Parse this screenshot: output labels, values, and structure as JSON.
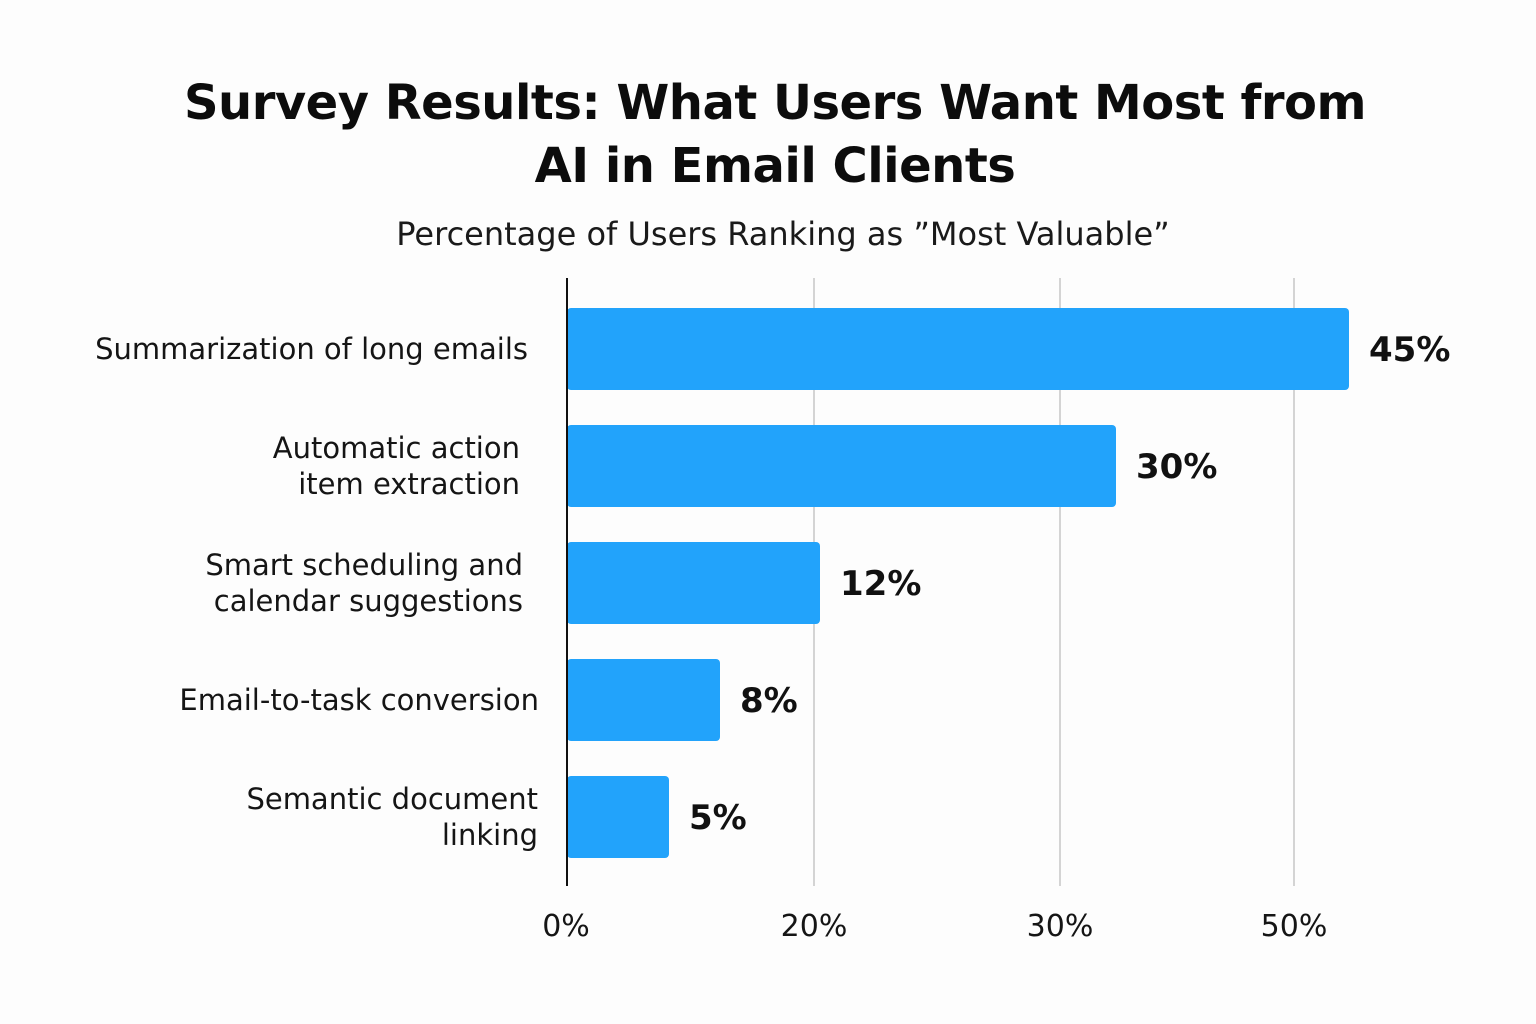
{
  "chart_data": {
    "type": "bar",
    "orientation": "horizontal",
    "title": [
      "Survey Results: What Users Want Most from",
      "AI in Email Clients"
    ],
    "subtitle": "Percentage of Users Ranking as ”Most Valuable”",
    "categories": [
      [
        "Summarization of long emails"
      ],
      [
        "Automatic action",
        "item extraction"
      ],
      [
        "Smart scheduling and",
        "calendar suggestions"
      ],
      [
        "Email-to-task conversion"
      ],
      [
        "Semantic document",
        "linking"
      ]
    ],
    "values": [
      45,
      30,
      12,
      8,
      5
    ],
    "value_labels": [
      "45%",
      "30%",
      "12%",
      "8%",
      "5%"
    ],
    "x_ticks": [
      "0%",
      "20%",
      "30%",
      "50%"
    ],
    "grid": true,
    "legend": false,
    "bar_color": "#22a3fb",
    "gridline_color": "#d4d4d4",
    "axis_color": "#111111"
  }
}
